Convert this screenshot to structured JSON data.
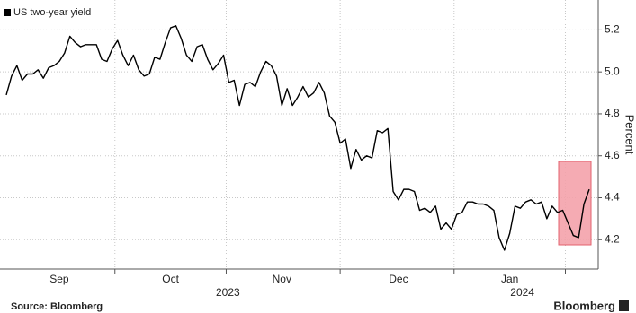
{
  "chart_data": {
    "type": "line",
    "legend_location": "upper left",
    "y_label": "Percent",
    "source": "Source: Bloomberg",
    "brand": "Bloomberg",
    "x_year_labels": [
      "2023",
      "2024"
    ],
    "categories": [
      null,
      null,
      null,
      null,
      null,
      null,
      null,
      null,
      null,
      null,
      "Sep",
      null,
      null,
      null,
      null,
      null,
      null,
      null,
      null,
      null,
      null,
      null,
      null,
      null,
      null,
      null,
      null,
      null,
      null,
      null,
      null,
      "Oct",
      null,
      null,
      null,
      null,
      null,
      null,
      null,
      null,
      null,
      null,
      null,
      null,
      null,
      null,
      null,
      null,
      null,
      null,
      null,
      null,
      "Nov",
      null,
      null,
      null,
      null,
      null,
      null,
      null,
      null,
      null,
      null,
      null,
      null,
      null,
      null,
      null,
      null,
      null,
      null,
      null,
      null,
      null,
      "Dec",
      null,
      null,
      null,
      null,
      null,
      null,
      null,
      null,
      null,
      null,
      null,
      null,
      null,
      null,
      null,
      null,
      null,
      null,
      null,
      null,
      "Jan",
      null,
      null,
      null,
      null,
      null,
      null,
      null,
      null,
      null,
      null,
      null,
      null,
      null,
      null,
      null
    ],
    "series": [
      {
        "name": "US two-year yield",
        "color": "#000000",
        "values": [
          4.89,
          4.98,
          5.03,
          4.96,
          4.99,
          4.99,
          5.01,
          4.97,
          5.02,
          5.03,
          5.05,
          5.09,
          5.17,
          5.14,
          5.12,
          5.13,
          5.13,
          5.13,
          5.06,
          5.05,
          5.11,
          5.15,
          5.08,
          5.03,
          5.08,
          5.01,
          4.98,
          4.99,
          5.07,
          5.06,
          5.14,
          5.21,
          5.22,
          5.16,
          5.08,
          5.05,
          5.12,
          5.13,
          5.06,
          5.01,
          5.04,
          5.08,
          4.95,
          4.96,
          4.84,
          4.94,
          4.95,
          4.93,
          5.0,
          5.05,
          5.03,
          4.98,
          4.84,
          4.92,
          4.84,
          4.88,
          4.93,
          4.88,
          4.9,
          4.95,
          4.9,
          4.79,
          4.76,
          4.66,
          4.68,
          4.54,
          4.63,
          4.58,
          4.6,
          4.59,
          4.72,
          4.71,
          4.73,
          4.43,
          4.39,
          4.44,
          4.44,
          4.43,
          4.34,
          4.35,
          4.33,
          4.36,
          4.25,
          4.28,
          4.25,
          4.32,
          4.33,
          4.38,
          4.38,
          4.37,
          4.37,
          4.36,
          4.34,
          4.21,
          4.15,
          4.23,
          4.36,
          4.35,
          4.38,
          4.39,
          4.37,
          4.38,
          4.3,
          4.36,
          4.33,
          4.34,
          4.28,
          4.22,
          4.21,
          4.37,
          4.44
        ]
      }
    ],
    "ylim": [
      4.06,
      5.33
    ],
    "yticks": [
      4.2,
      4.4,
      4.6,
      4.8,
      {
        "value": 5,
        "label": "5.0"
      },
      5.2
    ],
    "grid": true
  }
}
